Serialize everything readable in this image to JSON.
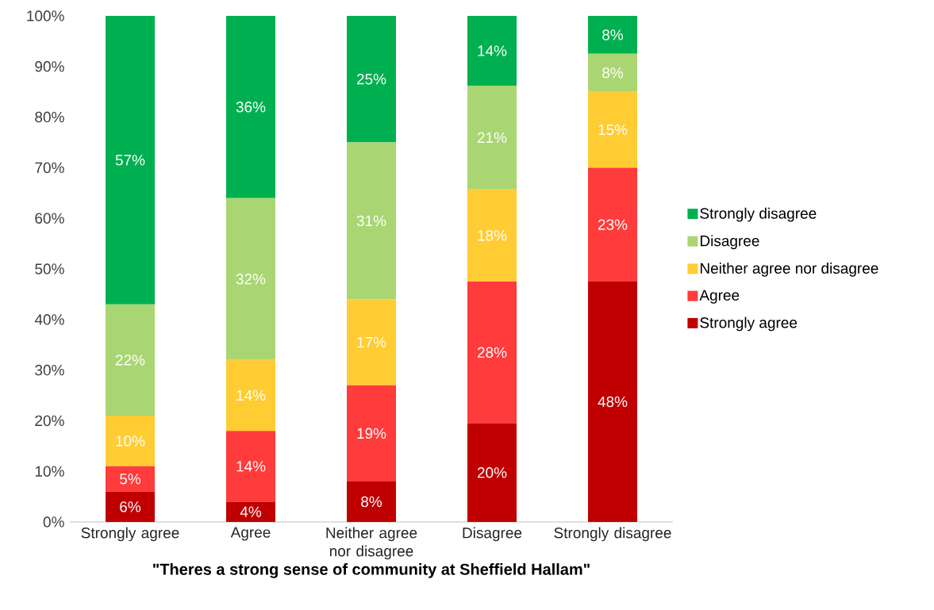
{
  "chart_data": {
    "type": "bar",
    "stacked": true,
    "xlabel": "\"Theres a strong sense  of community at Sheffield Hallam\"",
    "categories": [
      "Strongly agree",
      "Agree",
      "Neither agree nor disagree",
      "Disagree",
      "Strongly disagree"
    ],
    "ylim": [
      0,
      100
    ],
    "yticks": [
      {
        "value": 0,
        "label": "0%"
      },
      {
        "value": 10,
        "label": "10%"
      },
      {
        "value": 20,
        "label": "20%"
      },
      {
        "value": 30,
        "label": "30%"
      },
      {
        "value": 40,
        "label": "40%"
      },
      {
        "value": 50,
        "label": "50%"
      },
      {
        "value": 60,
        "label": "60%"
      },
      {
        "value": 70,
        "label": "70%"
      },
      {
        "value": 80,
        "label": "80%"
      },
      {
        "value": 90,
        "label": "90%"
      },
      {
        "value": 100,
        "label": "100%"
      }
    ],
    "legend": "right",
    "grid": false,
    "series": [
      {
        "name": "Strongly agree",
        "color": "#c00000",
        "values": [
          6,
          4,
          8,
          19.5,
          47.5
        ],
        "value_labels": [
          "6%",
          "4%",
          "8%",
          "20%",
          "48%"
        ]
      },
      {
        "name": "Agree",
        "color": "#ff3b3b",
        "values": [
          5,
          14,
          19,
          28,
          22.5
        ],
        "value_labels": [
          "5%",
          "14%",
          "19%",
          "28%",
          "23%"
        ]
      },
      {
        "name": "Neither agree nor disagree",
        "color": "#ffcc33",
        "values": [
          10,
          14,
          17,
          18.2,
          15
        ],
        "value_labels": [
          "10%",
          "14%",
          "17%",
          "18%",
          "15%"
        ]
      },
      {
        "name": "Disagree",
        "color": "#a9d672",
        "values": [
          22,
          32,
          31,
          20.5,
          7.5
        ],
        "value_labels": [
          "22%",
          "32%",
          "31%",
          "21%",
          "8%"
        ]
      },
      {
        "name": "Strongly disagree",
        "color": "#00b050",
        "values": [
          57,
          36,
          25,
          13.8,
          7.5
        ],
        "value_labels": [
          "57%",
          "36%",
          "25%",
          "14%",
          "8%"
        ]
      }
    ]
  }
}
